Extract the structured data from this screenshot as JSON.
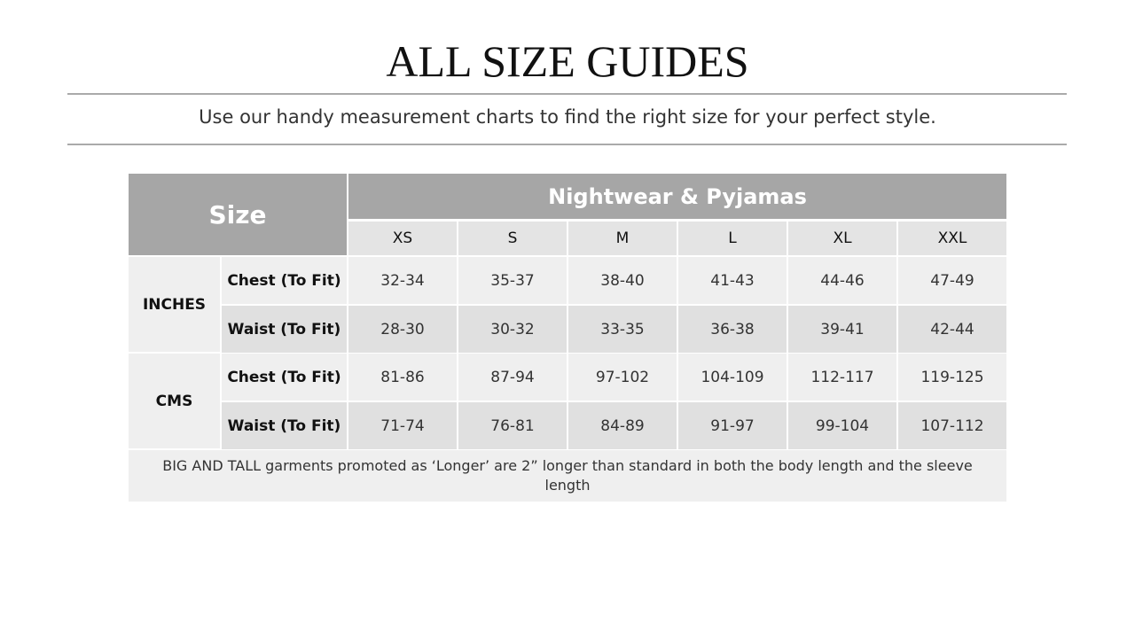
{
  "title": "ALL SIZE GUIDES",
  "subtitle": "Use our handy measurement charts to find the right size for your perfect style.",
  "table": {
    "corner": "Size",
    "category": "Nightwear & Pyjamas",
    "sizes": [
      "XS",
      "S",
      "M",
      "L",
      "XL",
      "XXL"
    ],
    "groups": [
      {
        "unit": "INCHES",
        "rows": [
          {
            "label": "Chest (To Fit)",
            "values": [
              "32-34",
              "35-37",
              "38-40",
              "41-43",
              "44-46",
              "47-49"
            ]
          },
          {
            "label": "Waist (To Fit)",
            "values": [
              "28-30",
              "30-32",
              "33-35",
              "36-38",
              "39-41",
              "42-44"
            ]
          }
        ]
      },
      {
        "unit": "CMS",
        "rows": [
          {
            "label": "Chest (To Fit)",
            "values": [
              "81-86",
              "87-94",
              "97-102",
              "104-109",
              "112-117",
              "119-125"
            ]
          },
          {
            "label": "Waist (To Fit)",
            "values": [
              "71-74",
              "76-81",
              "84-89",
              "91-97",
              "99-104",
              "107-112"
            ]
          }
        ]
      }
    ],
    "footnote": "BIG AND TALL garments promoted as ‘Longer’ are 2” longer than standard in both the body length and the sleeve length"
  }
}
